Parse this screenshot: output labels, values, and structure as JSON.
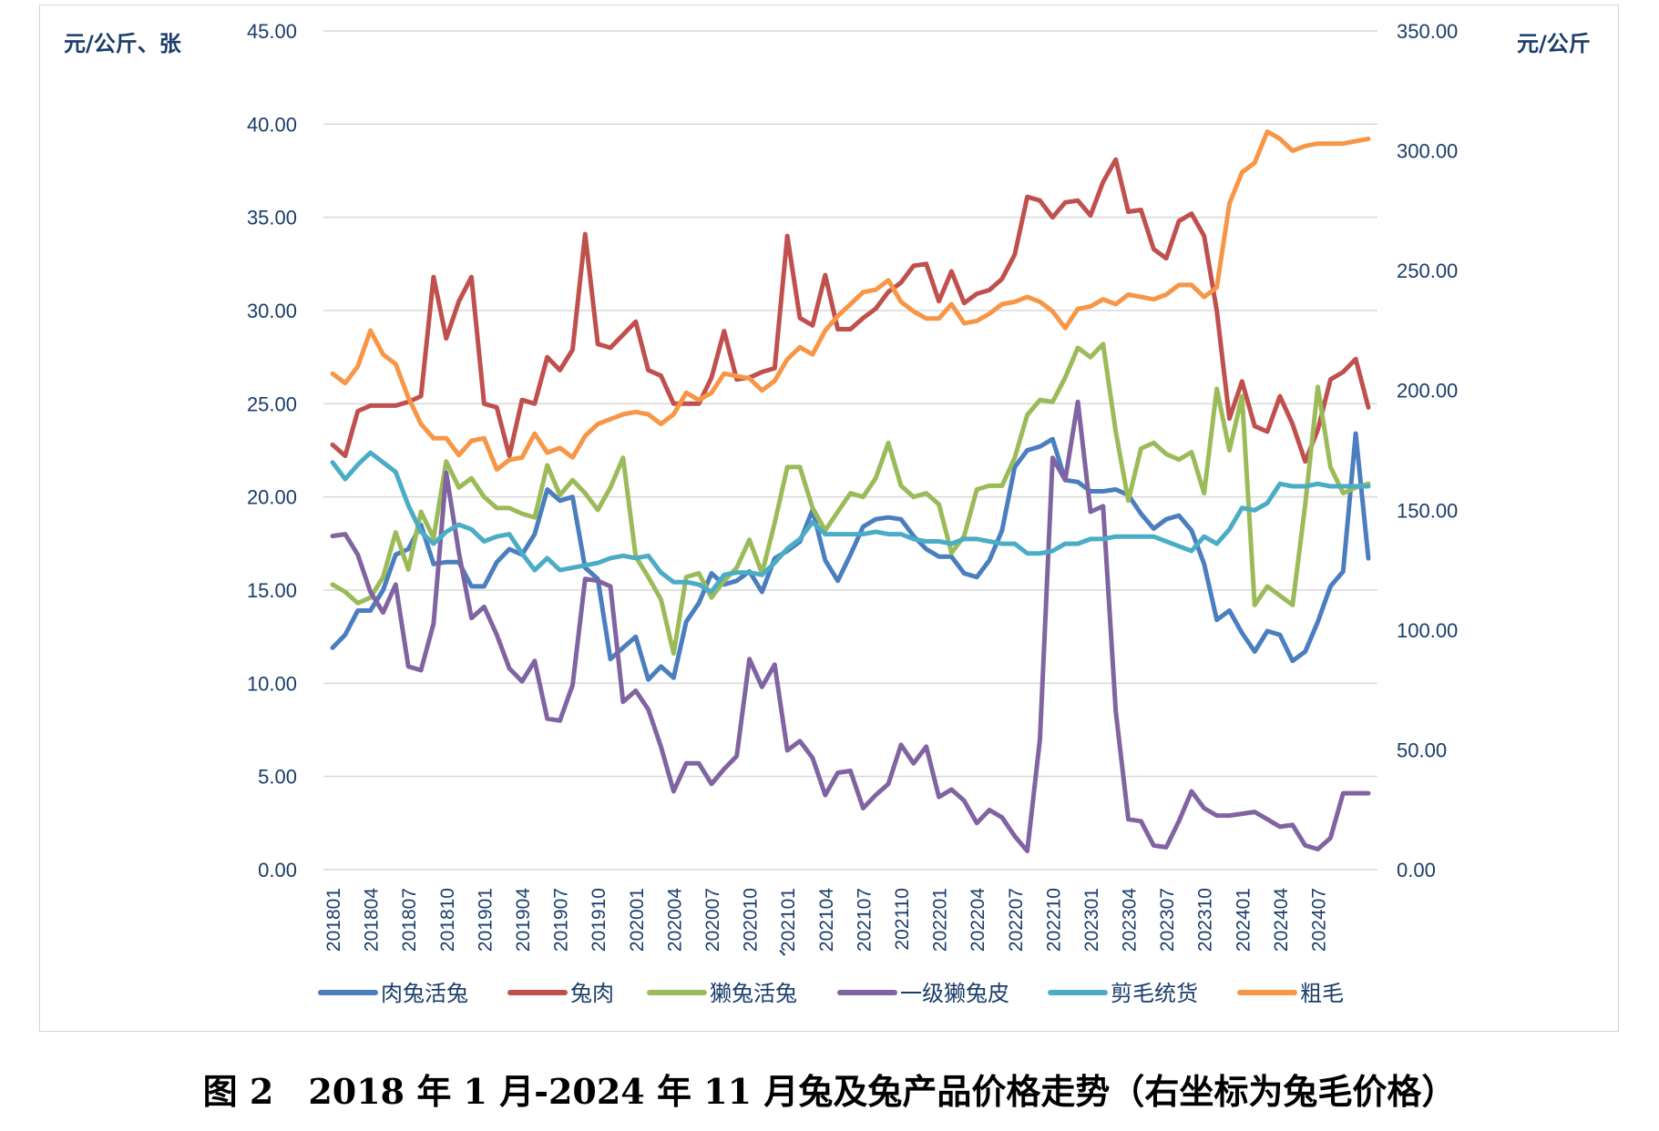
{
  "chart_data": {
    "type": "line",
    "title": "",
    "left_axis_label": "元/公斤、张",
    "right_axis_label": "元/公斤",
    "ylim_left": [
      0,
      45
    ],
    "ylim_right": [
      0,
      350
    ],
    "y_left_ticks": [
      "0.00",
      "5.00",
      "10.00",
      "15.00",
      "20.00",
      "25.00",
      "30.00",
      "35.00",
      "40.00",
      "45.00"
    ],
    "y_right_ticks": [
      "0.00",
      "50.00",
      "100.00",
      "150.00",
      "200.00",
      "250.00",
      "300.00",
      "350.00"
    ],
    "x_start": "201801",
    "x_count": 83,
    "x_tick_labels": [
      "201801",
      "201804",
      "201807",
      "201810",
      "201901",
      "201904",
      "201907",
      "201910",
      "202001",
      "202004",
      "202007",
      "202010",
      "202101",
      "202104",
      "202107",
      "202110",
      "202201",
      "202204",
      "202207",
      "202210",
      "202301",
      "202304",
      "202307",
      "202310",
      "202401",
      "202404",
      "202407"
    ],
    "stray_mark": "、",
    "series": [
      {
        "name": "肉兔活兔",
        "color": "#4a7ebf",
        "axis": "left",
        "values": [
          11.9,
          12.6,
          13.9,
          13.9,
          15.0,
          16.9,
          17.2,
          18.5,
          16.4,
          16.5,
          16.5,
          15.2,
          15.2,
          16.5,
          17.2,
          16.9,
          18.0,
          20.4,
          19.8,
          20.0,
          16.2,
          15.6,
          11.3,
          11.9,
          12.5,
          10.2,
          10.9,
          10.3,
          13.3,
          14.3,
          15.9,
          15.3,
          15.5,
          16.0,
          14.9,
          16.7,
          17.1,
          17.6,
          19.3,
          16.6,
          15.5,
          16.9,
          18.4,
          18.8,
          18.9,
          18.8,
          17.9,
          17.2,
          16.8,
          16.8,
          15.9,
          15.7,
          16.6,
          18.2,
          21.6,
          22.5,
          22.7,
          23.1,
          20.9,
          20.8,
          20.3,
          20.3,
          20.4,
          20.1,
          19.1,
          18.3,
          18.8,
          19.0,
          18.2,
          16.4,
          13.4,
          13.9,
          12.7,
          11.7,
          12.8,
          12.6,
          11.2,
          11.7,
          13.3,
          15.2,
          16.0,
          23.4,
          16.7
        ]
      },
      {
        "name": "兔肉",
        "color": "#c0504d",
        "axis": "left",
        "values": [
          22.8,
          22.2,
          24.6,
          24.9,
          24.9,
          24.9,
          25.1,
          25.4,
          31.8,
          28.5,
          30.5,
          31.8,
          25.0,
          24.8,
          22.2,
          25.2,
          25.0,
          27.5,
          26.8,
          27.9,
          34.1,
          28.2,
          28.0,
          28.7,
          29.4,
          26.8,
          26.5,
          25.0,
          25.0,
          25.0,
          26.4,
          28.9,
          26.3,
          26.4,
          26.7,
          26.9,
          34.0,
          29.6,
          29.2,
          31.9,
          29.0,
          29.0,
          29.6,
          30.1,
          31.0,
          31.5,
          32.4,
          32.5,
          30.5,
          32.1,
          30.4,
          30.9,
          31.1,
          31.7,
          33.0,
          36.1,
          35.9,
          35.0,
          35.8,
          35.9,
          35.1,
          36.9,
          38.1,
          35.3,
          35.4,
          33.3,
          32.8,
          34.8,
          35.2,
          34.0,
          30.0,
          24.2,
          26.2,
          23.8,
          23.5,
          25.4,
          23.9,
          21.9,
          23.6,
          26.3,
          26.7,
          27.4,
          24.8
        ]
      },
      {
        "name": "獭兔活兔",
        "color": "#9bbb59",
        "axis": "left",
        "values": [
          15.3,
          14.9,
          14.3,
          14.6,
          15.7,
          18.1,
          16.1,
          19.2,
          17.8,
          21.9,
          20.5,
          21.0,
          20.0,
          19.4,
          19.4,
          19.1,
          18.9,
          21.7,
          20.1,
          20.9,
          20.2,
          19.3,
          20.5,
          22.1,
          16.8,
          15.7,
          14.5,
          11.6,
          15.7,
          15.9,
          14.6,
          15.5,
          16.2,
          17.7,
          15.9,
          18.6,
          21.6,
          21.6,
          19.4,
          18.2,
          19.2,
          20.2,
          20.0,
          21.0,
          22.9,
          20.6,
          20.0,
          20.2,
          19.6,
          17.0,
          17.9,
          20.4,
          20.6,
          20.6,
          22.1,
          24.4,
          25.2,
          25.1,
          26.4,
          28.0,
          27.5,
          28.2,
          23.5,
          19.8,
          22.6,
          22.9,
          22.3,
          22.0,
          22.4,
          20.2,
          25.8,
          22.5,
          25.4,
          14.2,
          15.2,
          14.7,
          14.2,
          19.6,
          25.9,
          21.6,
          20.2,
          20.5,
          20.7
        ]
      },
      {
        "name": "一级獭兔皮",
        "color": "#8064a2",
        "axis": "left",
        "values": [
          17.9,
          18.0,
          16.9,
          14.9,
          13.8,
          15.3,
          10.9,
          10.7,
          13.2,
          21.3,
          17.0,
          13.5,
          14.1,
          12.6,
          10.8,
          10.1,
          11.2,
          8.1,
          8.0,
          9.9,
          15.6,
          15.5,
          15.2,
          9.0,
          9.6,
          8.6,
          6.6,
          4.2,
          5.7,
          5.7,
          4.6,
          5.4,
          6.1,
          11.3,
          9.8,
          11.0,
          6.4,
          6.9,
          6.0,
          4.0,
          5.2,
          5.3,
          3.3,
          4.0,
          4.6,
          6.7,
          5.7,
          6.6,
          3.9,
          4.3,
          3.7,
          2.5,
          3.2,
          2.8,
          1.8,
          1.0,
          7.0,
          22.1,
          20.9,
          25.1,
          19.2,
          19.5,
          8.5,
          2.7,
          2.6,
          1.3,
          1.2,
          2.6,
          4.2,
          3.3,
          2.9,
          2.9,
          3.0,
          3.1,
          2.7,
          2.3,
          2.4,
          1.3,
          1.1,
          1.7,
          4.1,
          4.1,
          4.1
        ]
      },
      {
        "name": "剪毛统货",
        "color": "#4bacc6",
        "axis": "right",
        "values": [
          170,
          163,
          169,
          174,
          170,
          166,
          152,
          141,
          136,
          141,
          144,
          142,
          137,
          139,
          140,
          132,
          125,
          130,
          125,
          126,
          127,
          128,
          130,
          131,
          130,
          131,
          124,
          120,
          120,
          119,
          116,
          123,
          124,
          124,
          123,
          128,
          134,
          138,
          145,
          140,
          140,
          140,
          140,
          141,
          140,
          140,
          138,
          137,
          137,
          136,
          138,
          138,
          137,
          136,
          136,
          132,
          132,
          133,
          136,
          136,
          138,
          138,
          139,
          139,
          139,
          139,
          137,
          135,
          133,
          139,
          136,
          142,
          151,
          150,
          153,
          161,
          160,
          160,
          161,
          160,
          160,
          160,
          160
        ]
      },
      {
        "name": "粗毛",
        "color": "#f79646",
        "axis": "right",
        "values": [
          207,
          203,
          210,
          225,
          215,
          211,
          197,
          186,
          180,
          180,
          173,
          179,
          180,
          167,
          171,
          172,
          182,
          174,
          176,
          172,
          181,
          186,
          188,
          190,
          191,
          190,
          186,
          190,
          199,
          196,
          199,
          207,
          206,
          205,
          200,
          204,
          213,
          218,
          215,
          225,
          231,
          236,
          241,
          242,
          246,
          237,
          233,
          230,
          230,
          236,
          228,
          229,
          232,
          236,
          237,
          239,
          237,
          233,
          226,
          234,
          235,
          238,
          236,
          240,
          239,
          238,
          240,
          244,
          244,
          239,
          243,
          278,
          291,
          295,
          308,
          305,
          300,
          302,
          303,
          303,
          303,
          304,
          305
        ]
      }
    ]
  },
  "caption": "图 2　2018 年 1 月-2024 年 11 月兔及兔产品价格走势（右坐标为兔毛价格）"
}
